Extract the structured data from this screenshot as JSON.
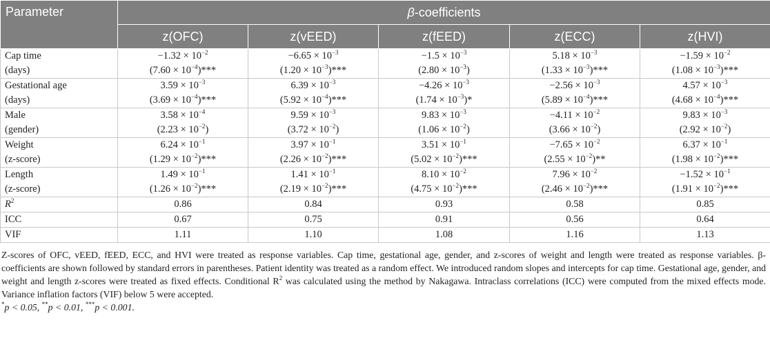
{
  "table": {
    "header": {
      "parameter": "Parameter",
      "beta_symbol": "β",
      "beta_label": "-coefficients",
      "columns": [
        "z(OFC)",
        "z(vEED)",
        "z(fEED)",
        "z(ECC)",
        "z(HVI)"
      ]
    },
    "rows": [
      {
        "label": [
          [
            "Cap time"
          ],
          [
            "(days)"
          ]
        ],
        "cells": [
          [
            [
              "−1.32 × 10",
              "−2"
            ],
            [
              "(7.60 × 10",
              "−4",
              ")***"
            ]
          ],
          [
            [
              "−6.65 × 10",
              "−3"
            ],
            [
              "(1.20 × 10",
              "−3",
              ")***"
            ]
          ],
          [
            [
              "−1.5 × 10",
              "−3"
            ],
            [
              "(2.80 × 10",
              "−3",
              ")"
            ]
          ],
          [
            [
              "5.18 × 10",
              "−3"
            ],
            [
              "(1.33 × 10",
              "−3",
              ")***"
            ]
          ],
          [
            [
              "−1.59 × 10",
              "−2"
            ],
            [
              "(1.08 × 10",
              "−3",
              ")***"
            ]
          ]
        ]
      },
      {
        "label": [
          [
            "Gestational age"
          ],
          [
            "(days)"
          ]
        ],
        "cells": [
          [
            [
              "3.59 × 10",
              "−3"
            ],
            [
              "(3.69 × 10",
              "−4",
              ")***"
            ]
          ],
          [
            [
              "6.39 × 10",
              "−3"
            ],
            [
              "(5.92 × 10",
              "−4",
              ")***"
            ]
          ],
          [
            [
              "−4.26 × 10",
              "−3"
            ],
            [
              "(1.74 × 10",
              "−3",
              ")*"
            ]
          ],
          [
            [
              "−2.56 × 10",
              "−3"
            ],
            [
              "(5.89 × 10",
              "−4",
              ")***"
            ]
          ],
          [
            [
              "4.57 × 10",
              "−3"
            ],
            [
              "(4.68 × 10",
              "−4",
              ")***"
            ]
          ]
        ]
      },
      {
        "label": [
          [
            "Male"
          ],
          [
            "(gender)"
          ]
        ],
        "cells": [
          [
            [
              "3.58 × 10",
              "−4"
            ],
            [
              "(2.23 × 10",
              "−2",
              ")"
            ]
          ],
          [
            [
              "9.59 × 10",
              "−3"
            ],
            [
              "(3.72 × 10",
              "−2",
              ")"
            ]
          ],
          [
            [
              "9.83 × 10",
              "−3"
            ],
            [
              "(1.06 × 10",
              "−2",
              ")"
            ]
          ],
          [
            [
              "−4.11 × 10",
              "−2"
            ],
            [
              "(3.66 × 10",
              "−2",
              ")"
            ]
          ],
          [
            [
              "9.83 × 10",
              "−3"
            ],
            [
              "(2.92 × 10",
              "−2",
              ")"
            ]
          ]
        ]
      },
      {
        "label": [
          [
            "Weight"
          ],
          [
            "(z-score)"
          ]
        ],
        "cells": [
          [
            [
              "6.24 × 10",
              "−1"
            ],
            [
              "(1.29 × 10",
              "−2",
              ")***"
            ]
          ],
          [
            [
              "3.97 × 10",
              "−1"
            ],
            [
              "(2.26 × 10",
              "−2",
              ")***"
            ]
          ],
          [
            [
              "3.51 × 10",
              "−1"
            ],
            [
              "(5.02 × 10",
              "−2",
              ")***"
            ]
          ],
          [
            [
              "−7.65 × 10",
              "−2"
            ],
            [
              "(2.55 × 10",
              "−2",
              ")**"
            ]
          ],
          [
            [
              "6.37 × 10",
              "−1"
            ],
            [
              "(1.98 × 10",
              "−2",
              ")***"
            ]
          ]
        ]
      },
      {
        "label": [
          [
            "Length"
          ],
          [
            "(z-score)"
          ]
        ],
        "cells": [
          [
            [
              "1.49 × 10",
              "−1"
            ],
            [
              "(1.26 × 10",
              "−2",
              ")***"
            ]
          ],
          [
            [
              "1.41 × 10",
              "−1"
            ],
            [
              "(2.19 × 10",
              "−2",
              ")***"
            ]
          ],
          [
            [
              "8.10 × 10",
              "−2"
            ],
            [
              "(4.75 × 10",
              "−2",
              ")***"
            ]
          ],
          [
            [
              "7.96 × 10",
              "−2"
            ],
            [
              "(2.46 × 10",
              "−2",
              ")***"
            ]
          ],
          [
            [
              "−1.52 × 10",
              "−1"
            ],
            [
              "(1.91 × 10",
              "−2",
              ")***"
            ]
          ]
        ]
      },
      {
        "label": [
          [
            "R",
            "2"
          ]
        ],
        "cells": [
          [
            [
              "0.86"
            ]
          ],
          [
            [
              "0.84"
            ]
          ],
          [
            [
              "0.93"
            ]
          ],
          [
            [
              "0.58"
            ]
          ],
          [
            [
              "0.85"
            ]
          ]
        ]
      },
      {
        "label": [
          [
            "ICC"
          ]
        ],
        "cells": [
          [
            [
              "0.67"
            ]
          ],
          [
            [
              "0.75"
            ]
          ],
          [
            [
              "0.91"
            ]
          ],
          [
            [
              "0.56"
            ]
          ],
          [
            [
              "0.64"
            ]
          ]
        ]
      },
      {
        "label": [
          [
            "VIF"
          ]
        ],
        "cells": [
          [
            [
              "1.11"
            ]
          ],
          [
            [
              "1.10"
            ]
          ],
          [
            [
              "1.08"
            ]
          ],
          [
            [
              "1.16"
            ]
          ],
          [
            [
              "1.13"
            ]
          ]
        ]
      }
    ]
  },
  "footnote": {
    "text": [
      "Z-scores of OFC, vEED, fEED, ECC, and HVI were treated as response variables. Cap time, gestational age, gender, and z-scores of weight and length were treated as response variables. β-coefficients are shown followed by standard errors in parentheses. Patient identity was treated as a random effect. We introduced random slopes and intercepts for cap time. Gestational age, gender, and weight and length z-scores were treated as fixed effects. Conditional R",
      "2",
      " was calculated using the method by Nakagawa. Intraclass correlations (ICC) were computed from the mixed effects mode. Variance inflation factors (VIF) below 5 were accepted."
    ],
    "significance": [
      {
        "stars": "*",
        "text": "p < 0.05, "
      },
      {
        "stars": "**",
        "text": "p < 0.01, "
      },
      {
        "stars": "***",
        "text": "p < 0.001."
      }
    ]
  }
}
